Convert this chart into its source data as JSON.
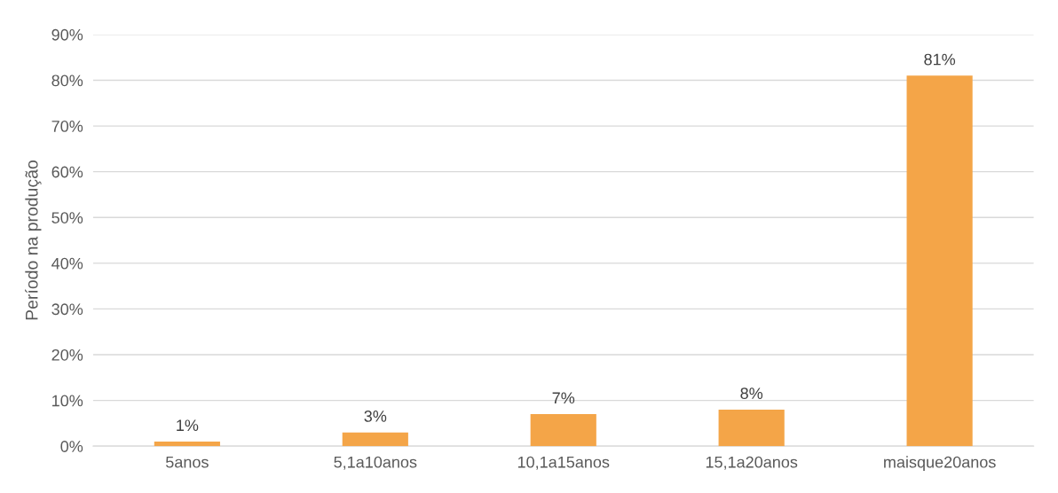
{
  "chart_data": {
    "type": "bar",
    "ylabel": "Período na produção",
    "categories": [
      "5anos",
      "5,1a10anos",
      "10,1a15anos",
      "15,1a20anos",
      "maisque20anos"
    ],
    "values": [
      1,
      3,
      7,
      8,
      81
    ],
    "color": "#f4a548",
    "value_labels": [
      "1%",
      "3%",
      "7%",
      "8%",
      "81%"
    ],
    "ylim": [
      0,
      90
    ],
    "yticks": [
      {
        "value": 0,
        "label": "0%"
      },
      {
        "value": 10,
        "label": "10%"
      },
      {
        "value": 20,
        "label": "20%"
      },
      {
        "value": 30,
        "label": "30%"
      },
      {
        "value": 40,
        "label": "40%"
      },
      {
        "value": 50,
        "label": "50%"
      },
      {
        "value": 60,
        "label": "60%"
      },
      {
        "value": 70,
        "label": "70%"
      },
      {
        "value": 80,
        "label": "80%"
      },
      {
        "value": 90,
        "label": "90%"
      }
    ],
    "grid": "y",
    "legend": false
  }
}
